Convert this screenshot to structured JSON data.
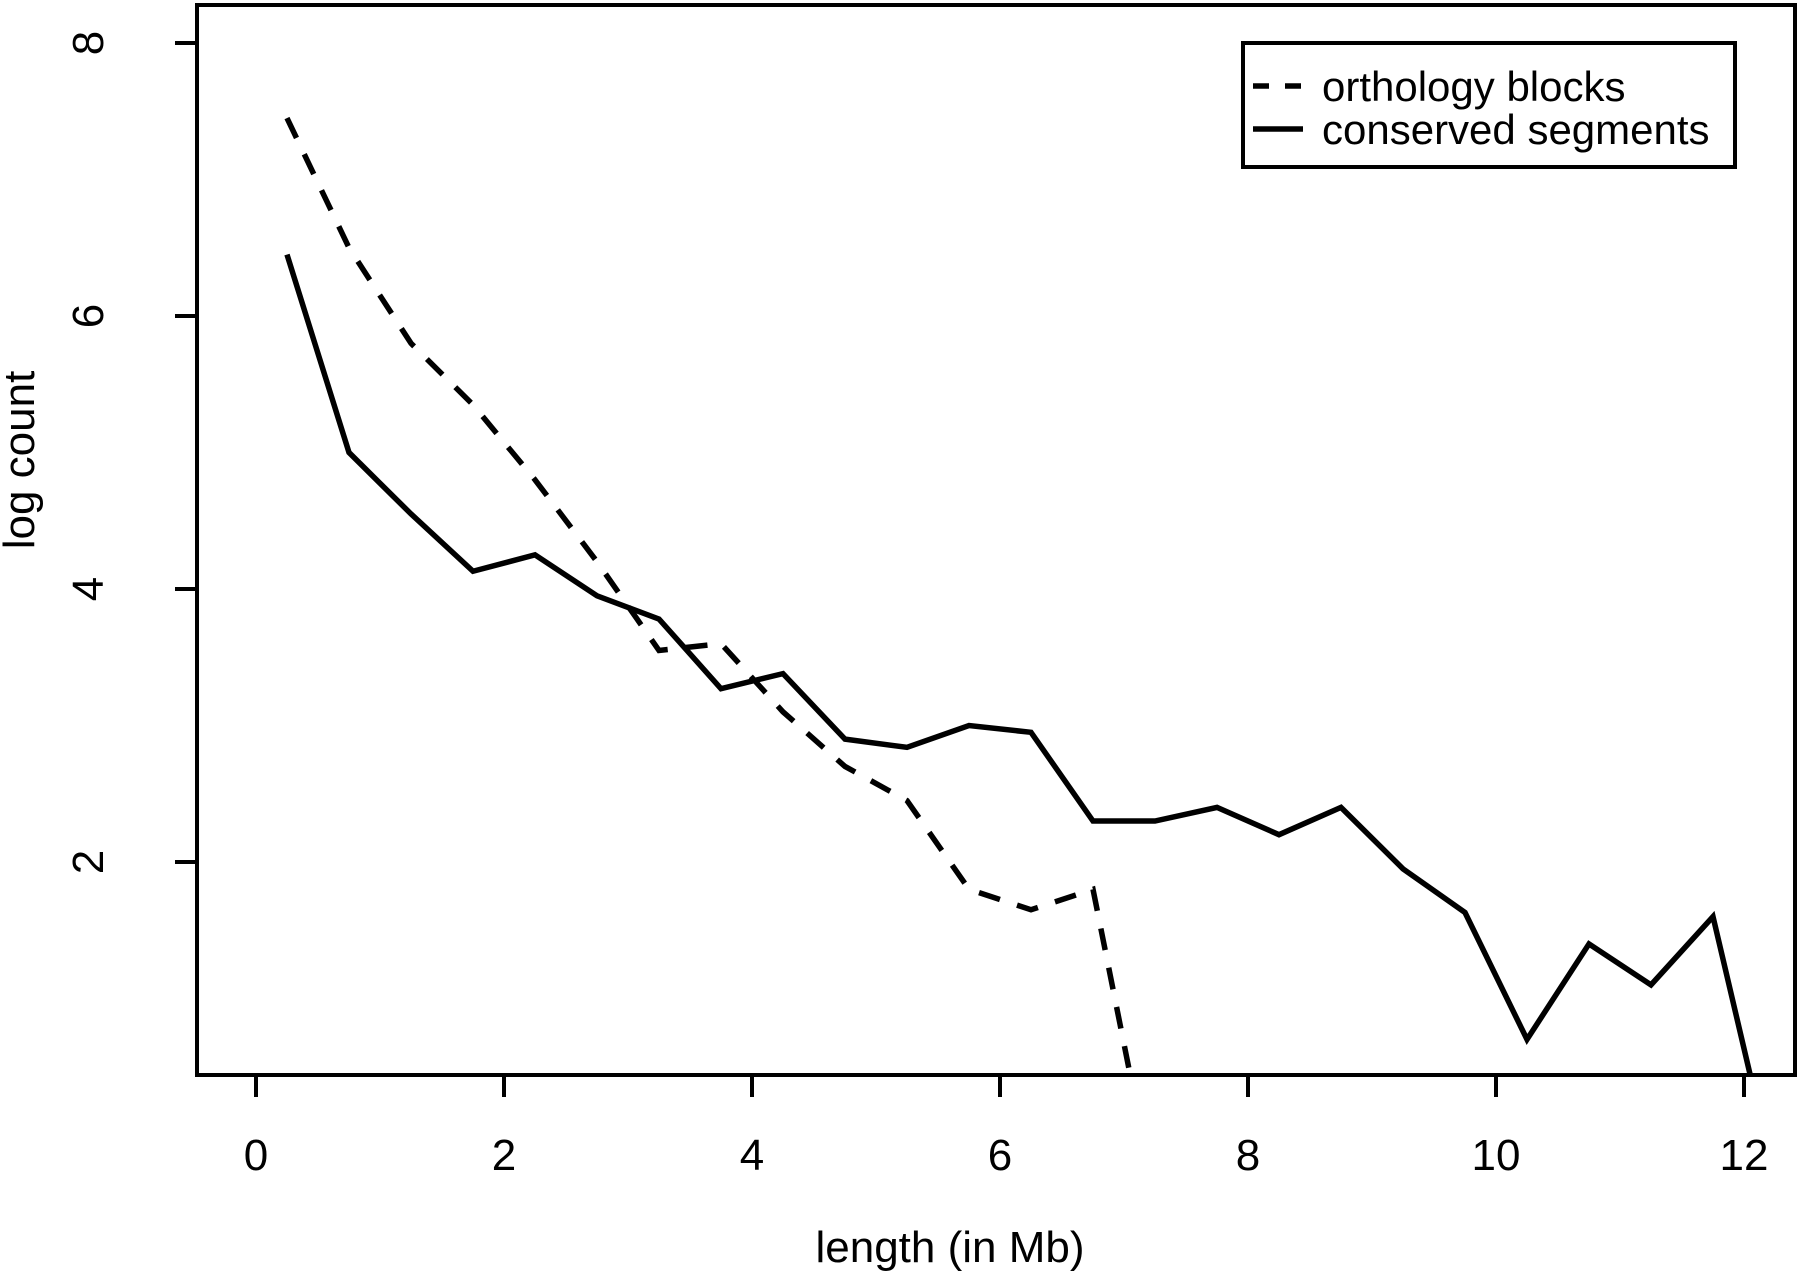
{
  "figure": {
    "background": "#ffffff",
    "ink_color": "#000000",
    "xlabel": "length (in Mb)",
    "ylabel": "log count",
    "x_ticks": [
      0,
      2,
      4,
      6,
      8,
      10,
      12
    ],
    "y_ticks": [
      2,
      4,
      6,
      8
    ],
    "legend": [
      {
        "label": "orthology blocks",
        "line_style": "dashed"
      },
      {
        "label": "conserved segments",
        "line_style": "solid"
      }
    ]
  },
  "chart_data": {
    "type": "line",
    "title": "",
    "xlabel": "length (in Mb)",
    "ylabel": "log count",
    "xlim": [
      -0.5,
      12.4
    ],
    "ylim": [
      0.44,
      8.28
    ],
    "grid": false,
    "frame": "full-box",
    "legend_position": "top-right",
    "series": [
      {
        "name": "orthology blocks",
        "style": "dashed",
        "x": [
          0.25,
          0.75,
          1.25,
          1.75,
          2.25,
          2.75,
          3.25,
          3.75,
          4.25,
          4.75,
          5.25,
          5.75,
          6.25,
          6.75,
          7.05
        ],
        "y": [
          7.45,
          6.5,
          5.8,
          5.35,
          4.8,
          4.2,
          3.55,
          3.6,
          3.1,
          2.7,
          2.45,
          1.8,
          1.65,
          1.8,
          0.44
        ],
        "note": "last segment descends off the bottom axis at x≈7.05"
      },
      {
        "name": "conserved segments",
        "style": "solid",
        "x": [
          0.25,
          0.75,
          1.25,
          1.75,
          2.25,
          2.75,
          3.25,
          3.75,
          4.25,
          4.75,
          5.25,
          5.75,
          6.25,
          6.75,
          7.25,
          7.75,
          8.25,
          8.75,
          9.25,
          9.75,
          10.25,
          10.75,
          11.25,
          11.75,
          12.05
        ],
        "y": [
          6.45,
          5.0,
          4.55,
          4.13,
          4.25,
          3.95,
          3.78,
          3.27,
          3.38,
          2.9,
          2.84,
          3.0,
          2.95,
          2.3,
          2.3,
          2.4,
          2.2,
          2.4,
          1.95,
          1.63,
          0.7,
          1.4,
          1.1,
          1.6,
          0.44
        ],
        "note": "last segment descends off the bottom axis at x≈12.05"
      }
    ]
  }
}
